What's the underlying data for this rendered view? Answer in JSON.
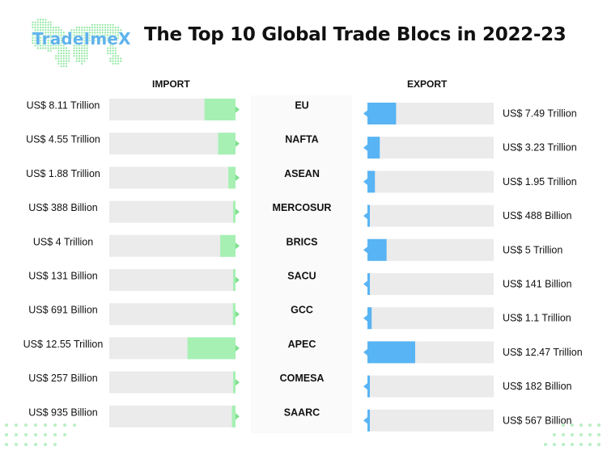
{
  "brand": {
    "name": "TradeImeX"
  },
  "title": "The Top 10 Global Trade Blocs in 2022-23",
  "colors": {
    "import": "#a6f0b4",
    "export": "#58b4f4",
    "track": "#ebebeb",
    "accent_green": "#7ee08f"
  },
  "chart_data": {
    "type": "bar",
    "title": "The Top 10 Global Trade Blocs in 2022-23",
    "categories": [
      "EU",
      "NAFTA",
      "ASEAN",
      "MERCOSUR",
      "BRICS",
      "SACU",
      "GCC",
      "APEC",
      "COMESA",
      "SAARC"
    ],
    "unit": "US$ Trillion",
    "series": [
      {
        "name": "IMPORT",
        "values": [
          8.11,
          4.55,
          1.88,
          0.388,
          4,
          0.131,
          0.691,
          12.55,
          0.257,
          0.935
        ],
        "labels": [
          "US$ 8.11 Trillion",
          "US$ 4.55 Trillion",
          "US$ 1.88 Trillion",
          "US$ 388 Billion",
          "US$ 4 Trillion",
          "US$ 131 Billion",
          "US$ 691 Billion",
          "US$ 12.55 Trillion",
          "US$ 257 Billion",
          "US$ 935 Billion"
        ]
      },
      {
        "name": "EXPORT",
        "values": [
          7.49,
          3.23,
          1.95,
          0.488,
          5,
          0.141,
          1.1,
          12.47,
          0.182,
          0.567
        ],
        "labels": [
          "US$ 7.49 Trillion",
          "US$ 3.23 Trillion",
          "US$ 1.95 Trillion",
          "US$ 488 Billion",
          "US$ 5 Trillion",
          "US$ 141 Billion",
          "US$ 1.1 Trillion",
          "US$ 12.47 Trillion",
          "US$ 182 Billion",
          "US$ 567 Billion"
        ]
      }
    ],
    "xlim": [
      0,
      33
    ]
  }
}
